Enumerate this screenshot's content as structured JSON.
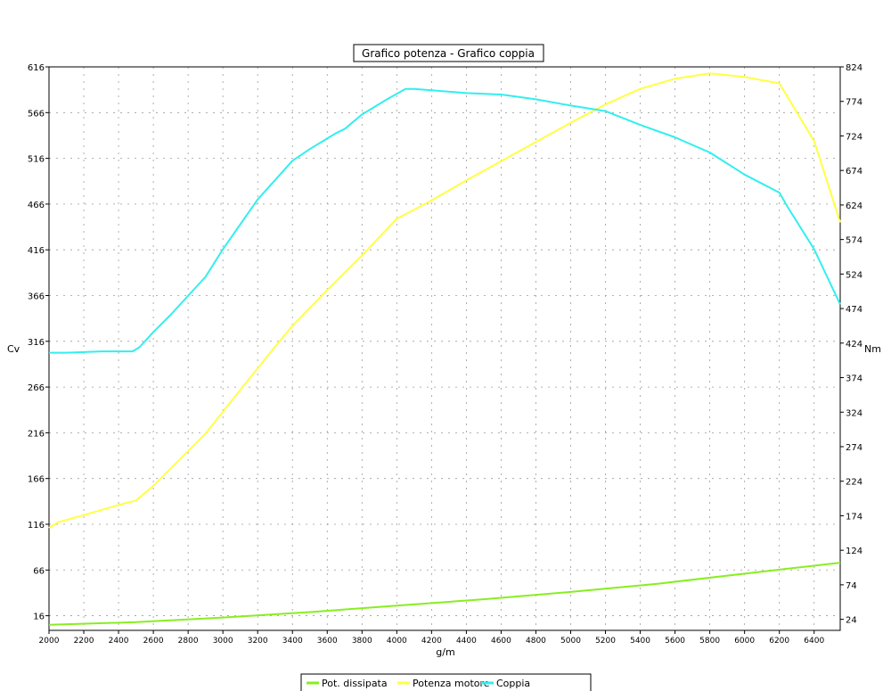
{
  "chart_data": {
    "type": "line",
    "title": "Grafico potenza - Grafico coppia",
    "xlabel": "g/m",
    "ylabel_left": "Cv",
    "ylabel_right": "Nm",
    "xlim": [
      2000,
      6550
    ],
    "ylim_left": [
      0,
      616
    ],
    "ylim_right": [
      8,
      824
    ],
    "x_ticks": [
      2000,
      2200,
      2400,
      2600,
      2800,
      3000,
      3200,
      3400,
      3600,
      3800,
      4000,
      4200,
      4400,
      4600,
      4800,
      5000,
      5200,
      5400,
      5600,
      5800,
      6000,
      6200,
      6400
    ],
    "y_ticks_left": [
      16,
      66,
      116,
      166,
      216,
      266,
      316,
      366,
      416,
      466,
      516,
      566,
      616
    ],
    "y_ticks_right": [
      24,
      74,
      124,
      174,
      224,
      274,
      324,
      374,
      424,
      474,
      524,
      574,
      624,
      674,
      724,
      774,
      824
    ],
    "grid": true,
    "legend_position": "bottom-center",
    "series": [
      {
        "name": "Pot. dissipata",
        "axis": "left",
        "color": "#88ee22",
        "x": [
          2000,
          2500,
          3000,
          3500,
          4000,
          4500,
          5000,
          5500,
          6000,
          6550
        ],
        "y": [
          6,
          9,
          14,
          20,
          27,
          34,
          42,
          51,
          62,
          74
        ]
      },
      {
        "name": "Potenza motore",
        "axis": "left",
        "color": "#ffff44",
        "x": [
          2000,
          2050,
          2200,
          2400,
          2500,
          2600,
          2700,
          2900,
          3100,
          3300,
          3400,
          3600,
          3800,
          4000,
          4050,
          4200,
          4400,
          4600,
          4800,
          5000,
          5200,
          5400,
          5600,
          5800,
          5900,
          6000,
          6200,
          6400,
          6550
        ],
        "y": [
          112,
          118,
          126,
          137,
          142,
          158,
          177,
          215,
          263,
          310,
          333,
          372,
          410,
          450,
          455,
          470,
          492,
          513,
          534,
          555,
          575,
          592,
          603,
          609,
          607,
          605,
          598,
          535,
          446
        ]
      },
      {
        "name": "Coppia",
        "axis": "right",
        "color": "#33eeee",
        "x": [
          2000,
          2100,
          2200,
          2300,
          2400,
          2480,
          2520,
          2600,
          2700,
          2900,
          3000,
          3200,
          3400,
          3500,
          3650,
          3700,
          3800,
          3950,
          4050,
          4100,
          4200,
          4400,
          4600,
          4800,
          5000,
          5200,
          5400,
          5600,
          5800,
          6000,
          6200,
          6250,
          6400,
          6550
        ],
        "y": [
          410,
          410,
          411,
          412,
          412,
          412,
          418,
          440,
          465,
          520,
          560,
          632,
          688,
          705,
          728,
          734,
          755,
          778,
          792,
          792,
          790,
          786,
          784,
          777,
          768,
          760,
          740,
          722,
          700,
          668,
          642,
          620,
          560,
          480
        ]
      }
    ]
  }
}
